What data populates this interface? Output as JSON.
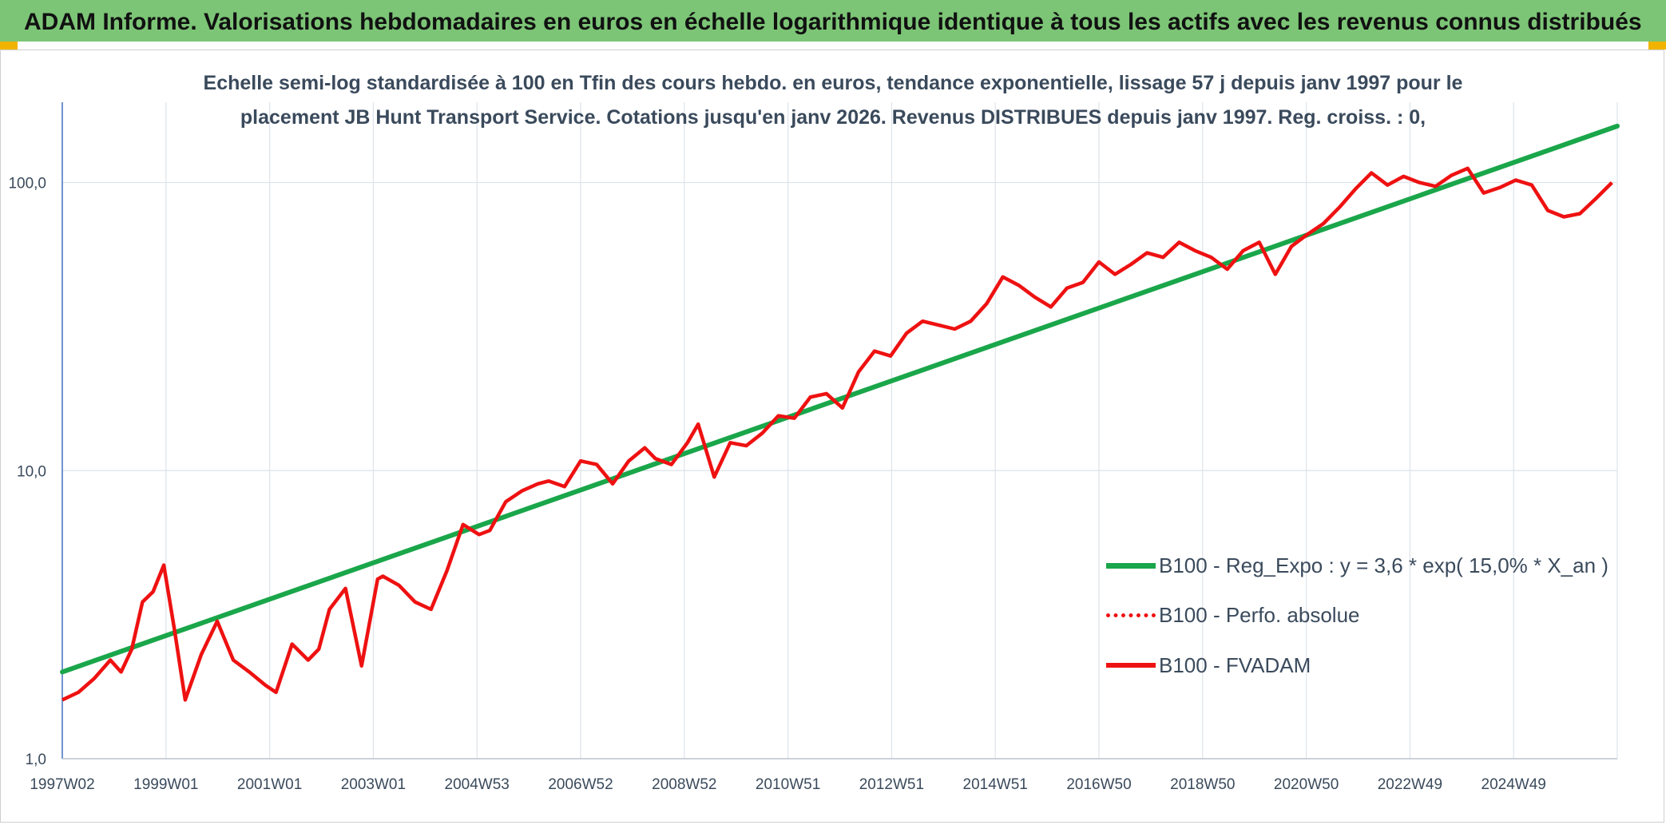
{
  "header": {
    "title": "ADAM Informe. Valorisations hebdomadaires en euros en échelle logarithmique identique à tous les actifs avec les revenus connus distribués"
  },
  "colors": {
    "header_bg": "#7cc576",
    "trend": "#1aa64a",
    "price": "#ee1111",
    "corner": "#f0b400",
    "grid": "#dde3ea",
    "text": "#3a4a5c"
  },
  "chart_data": {
    "type": "line",
    "title_lines": [
      "Echelle semi-log standardisée à 100 en Tfin des cours hebdo. en euros, tendance exponentielle, lissage 57 j depuis janv 1997 pour le",
      "placement JB Hunt Transport Service.  Cotations jusqu'en janv 2026. Revenus DISTRIBUES depuis janv 1997. Reg. croiss. : 0,"
    ],
    "x_tick_labels": [
      "1997W02",
      "1999W01",
      "2001W01",
      "2003W01",
      "2004W53",
      "2006W52",
      "2008W52",
      "2010W51",
      "2012W51",
      "2014W51",
      "2016W50",
      "2018W50",
      "2020W50",
      "2022W49",
      "2024W49"
    ],
    "y_scale": "log",
    "ylim": [
      1,
      190
    ],
    "y_tick_labels": [
      "1,0",
      "10,0",
      "100,0"
    ],
    "y_tick_values": [
      1,
      10,
      100
    ],
    "grid": true,
    "legend_position": "right",
    "series": [
      {
        "name": "B100 - Reg_Expo : y = 3,6 * exp( 15,0% *  X_an )",
        "style": "solid-thick",
        "color": "#1aa64a",
        "x": [
          1997.0,
          2026.1
        ],
        "values": [
          2.0,
          157.0
        ]
      },
      {
        "name": "B100 - Perfo. absolue",
        "style": "dotted",
        "color": "#ee1111",
        "x": [],
        "values": []
      },
      {
        "name": "B100 - FVADAM",
        "style": "solid",
        "color": "#ee1111",
        "x": [
          1997.0,
          1997.3,
          1997.6,
          1997.9,
          1998.1,
          1998.3,
          1998.5,
          1998.7,
          1998.9,
          1999.1,
          1999.3,
          1999.6,
          1999.9,
          2000.2,
          2000.5,
          2000.8,
          2001.0,
          2001.3,
          2001.6,
          2001.8,
          2002.0,
          2002.3,
          2002.6,
          2002.9,
          2003.0,
          2003.3,
          2003.6,
          2003.9,
          2004.2,
          2004.5,
          2004.8,
          2005.0,
          2005.3,
          2005.6,
          2005.9,
          2006.1,
          2006.4,
          2006.7,
          2007.0,
          2007.3,
          2007.6,
          2007.9,
          2008.1,
          2008.4,
          2008.7,
          2008.9,
          2009.2,
          2009.5,
          2009.8,
          2010.1,
          2010.4,
          2010.7,
          2011.0,
          2011.3,
          2011.6,
          2011.9,
          2012.2,
          2012.5,
          2012.8,
          2013.1,
          2013.4,
          2013.7,
          2014.0,
          2014.3,
          2014.6,
          2014.9,
          2015.2,
          2015.5,
          2015.8,
          2016.1,
          2016.4,
          2016.7,
          2017.0,
          2017.3,
          2017.6,
          2017.9,
          2018.2,
          2018.5,
          2018.8,
          2019.1,
          2019.4,
          2019.7,
          2020.0,
          2020.3,
          2020.6,
          2020.9,
          2021.2,
          2021.5,
          2021.8,
          2022.1,
          2022.4,
          2022.7,
          2023.0,
          2023.3,
          2023.6,
          2023.9,
          2024.2,
          2024.5,
          2024.8,
          2025.1,
          2025.4,
          2025.7,
          2026.0
        ],
        "values": [
          1.6,
          1.7,
          1.9,
          2.2,
          2.0,
          2.4,
          3.5,
          3.8,
          4.7,
          2.8,
          1.6,
          2.3,
          3.0,
          2.2,
          2.0,
          1.8,
          1.7,
          2.5,
          2.2,
          2.4,
          3.3,
          3.9,
          2.1,
          4.2,
          4.3,
          4.0,
          3.5,
          3.3,
          4.5,
          6.5,
          6.0,
          6.2,
          7.8,
          8.5,
          9.0,
          9.2,
          8.8,
          10.8,
          10.5,
          9.0,
          10.8,
          12.0,
          11.0,
          10.5,
          12.5,
          14.5,
          9.5,
          12.5,
          12.2,
          13.5,
          15.5,
          15.2,
          18.0,
          18.5,
          16.5,
          22.0,
          26.0,
          25.0,
          30.0,
          33.0,
          32.0,
          31.0,
          33.0,
          38.0,
          47.0,
          44.0,
          40.0,
          37.0,
          43.0,
          45.0,
          53.0,
          48.0,
          52.0,
          57.0,
          55.0,
          62.0,
          58.0,
          55.0,
          50.0,
          58.0,
          62.0,
          48.0,
          60.0,
          66.0,
          72.0,
          82.0,
          95.0,
          108.0,
          98.0,
          105.0,
          100.0,
          97.0,
          106.0,
          112.0,
          92.0,
          96.0,
          102.0,
          98.0,
          80.0,
          76.0,
          78.0,
          88.0,
          100.0
        ]
      }
    ]
  }
}
